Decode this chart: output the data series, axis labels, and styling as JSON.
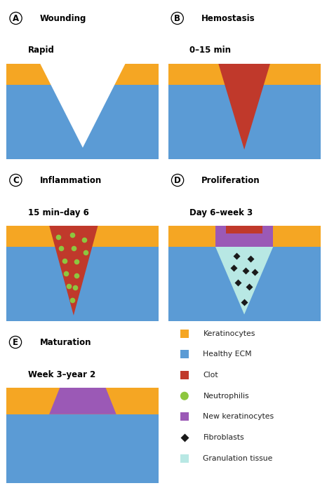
{
  "bg_color": "#ffffff",
  "keratinocyte_color": "#f5a623",
  "ecm_color": "#5b9bd5",
  "clot_color": "#c0392b",
  "neutrophil_color": "#8dc63f",
  "new_kerat_color": "#9b59b6",
  "granulation_color": "#b8e8e4",
  "fibroblast_color": "#1a1a1a",
  "panel_A_title": "Wounding",
  "panel_A_subtitle": "Rapid",
  "panel_B_title": "Hemostasis",
  "panel_B_subtitle": "0–15 min",
  "panel_C_title": "Inflammation",
  "panel_C_subtitle": "15 min–day 6",
  "panel_D_title": "Proliferation",
  "panel_D_subtitle": "Day 6–week 3",
  "panel_E_title": "Maturation",
  "panel_E_subtitle": "Week 3–year 2",
  "legend_items": [
    {
      "label": "Keratinocytes",
      "color": "#f5a623",
      "marker": "s"
    },
    {
      "label": "Healthy ECM",
      "color": "#5b9bd5",
      "marker": "s"
    },
    {
      "label": "Clot",
      "color": "#c0392b",
      "marker": "s"
    },
    {
      "label": "Neutrophilis",
      "color": "#8dc63f",
      "marker": "o"
    },
    {
      "label": "New keratinocytes",
      "color": "#9b59b6",
      "marker": "s"
    },
    {
      "label": "Fibroblasts",
      "color": "#1a1a1a",
      "marker": "D"
    },
    {
      "label": "Granulation tissue",
      "color": "#b8e8e4",
      "marker": "s"
    }
  ]
}
